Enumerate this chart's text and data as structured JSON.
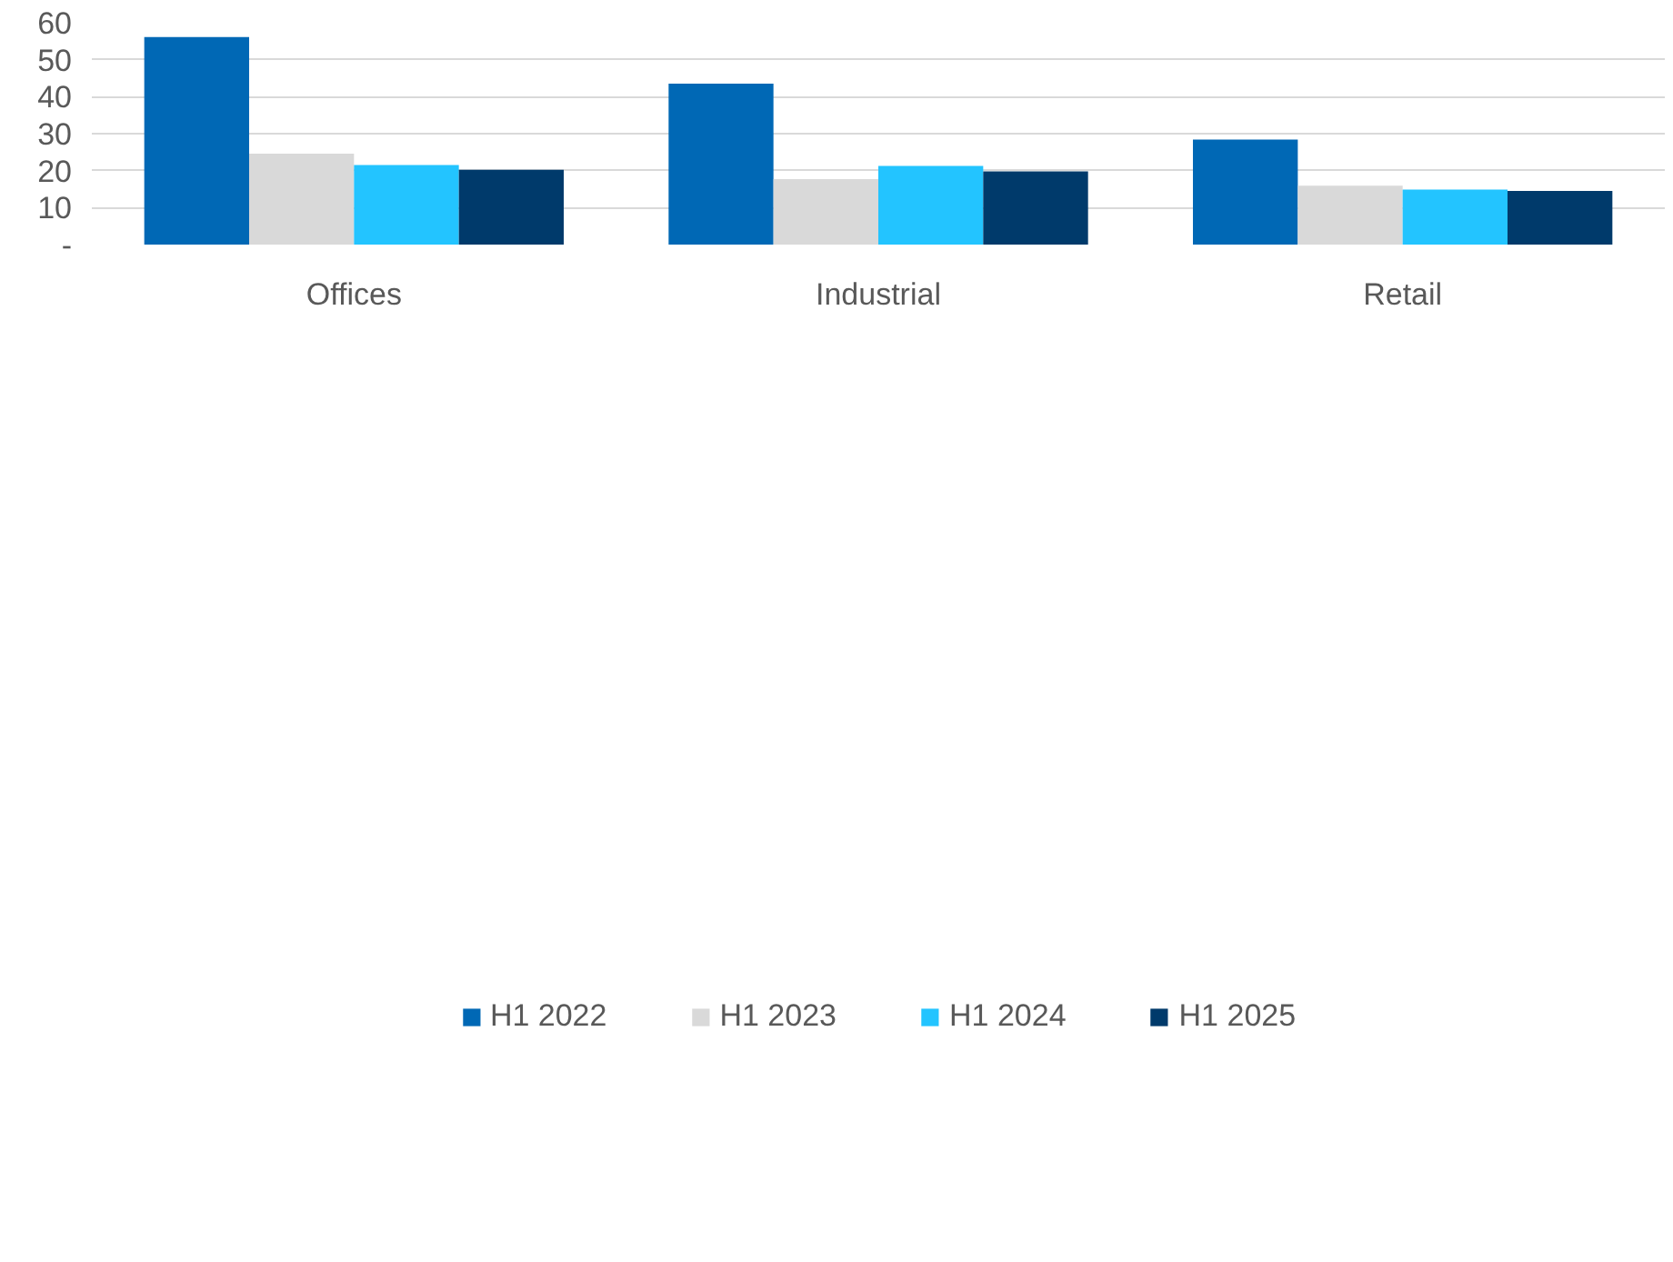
{
  "chart_data": {
    "type": "bar",
    "categories": [
      "Offices",
      "Industrial",
      "Retail"
    ],
    "series": [
      {
        "name": "H1 2022",
        "color": "#0068b5",
        "values": [
          56.1,
          43.5,
          28.4
        ]
      },
      {
        "name": "H1 2023",
        "color": "#d9d9d9",
        "values": [
          24.6,
          17.7,
          15.9
        ]
      },
      {
        "name": "H1 2024",
        "color": "#23c4ff",
        "values": [
          21.5,
          21.3,
          14.9
        ]
      },
      {
        "name": "H1 2025",
        "color": "#003a6b",
        "values": [
          20.2,
          19.8,
          14.5
        ]
      }
    ],
    "ylim": [
      0,
      60
    ],
    "yticks": [
      {
        "value": 0,
        "label": "-"
      },
      10,
      20,
      30,
      40,
      50,
      60
    ],
    "grid": "y",
    "legend": "bottom"
  }
}
